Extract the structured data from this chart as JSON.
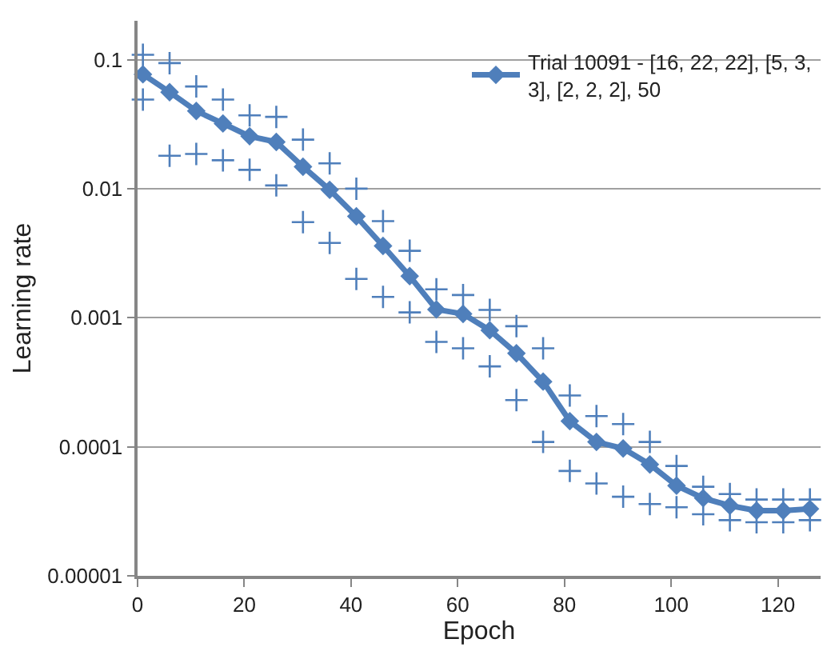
{
  "chart_data": {
    "type": "line",
    "xlabel": "Epoch",
    "ylabel": "Learning rate",
    "log": "y",
    "grid": "y",
    "legend": "top right",
    "x": [
      1,
      6,
      11,
      16,
      21,
      26,
      31,
      36,
      41,
      46,
      51,
      56,
      61,
      66,
      71,
      76,
      81,
      86,
      91,
      96,
      101,
      106,
      111,
      116,
      121,
      126
    ],
    "xlim": [
      0,
      128
    ],
    "xticks": [
      0,
      20,
      40,
      60,
      80,
      100,
      120
    ],
    "ylim": [
      1e-05,
      0.2
    ],
    "yticks": [
      {
        "value": 1e-05,
        "label": "0.00001"
      },
      {
        "value": 0.0001,
        "label": "0.0001"
      },
      {
        "value": 0.001,
        "label": "0.001"
      },
      {
        "value": 0.01,
        "label": "0.01"
      },
      {
        "value": 0.1,
        "label": "0.1"
      }
    ],
    "series": [
      {
        "name": "Trial 10091 - [16, 22, 22], [5, 3, 3], [2, 2, 2], 50",
        "marker": "diamond",
        "line_style": "solid",
        "color": "#4f7fbb",
        "values": [
          0.077,
          0.056,
          0.04,
          0.032,
          0.0255,
          0.023,
          0.0148,
          0.0098,
          0.0061,
          0.0036,
          0.0021,
          0.00116,
          0.00107,
          0.0008,
          0.00053,
          0.00032,
          0.000158,
          0.000109,
          9.7e-05,
          7.3e-05,
          5e-05,
          4e-05,
          3.5e-05,
          3.2e-05,
          3.2e-05,
          3.3e-05
        ]
      },
      {
        "type": "scatter",
        "marker": "cross",
        "color": "#4f7fbb",
        "values": [
          0.109,
          0.094,
          0.062,
          0.049,
          0.037,
          0.036,
          0.024,
          0.0157,
          0.01,
          0.0056,
          0.0033,
          0.00166,
          0.0015,
          0.00115,
          0.00086,
          0.00058,
          0.00025,
          0.000173,
          0.00015,
          0.000109,
          7.1e-05,
          4.9e-05,
          4.3e-05,
          3.9e-05,
          3.9e-05,
          3.9e-05
        ]
      },
      {
        "type": "scatter",
        "marker": "cross",
        "color": "#4f7fbb",
        "values": [
          0.049,
          0.018,
          0.0186,
          0.0166,
          0.014,
          0.0106,
          0.0055,
          0.0038,
          0.002,
          0.00145,
          0.0011,
          0.00065,
          0.00058,
          0.00042,
          0.00023,
          0.000109,
          6.5e-05,
          5.2e-05,
          4.1e-05,
          3.6e-05,
          3.4e-05,
          3e-05,
          2.7e-05,
          2.6e-05,
          2.6e-05,
          2.7e-05
        ]
      }
    ]
  }
}
